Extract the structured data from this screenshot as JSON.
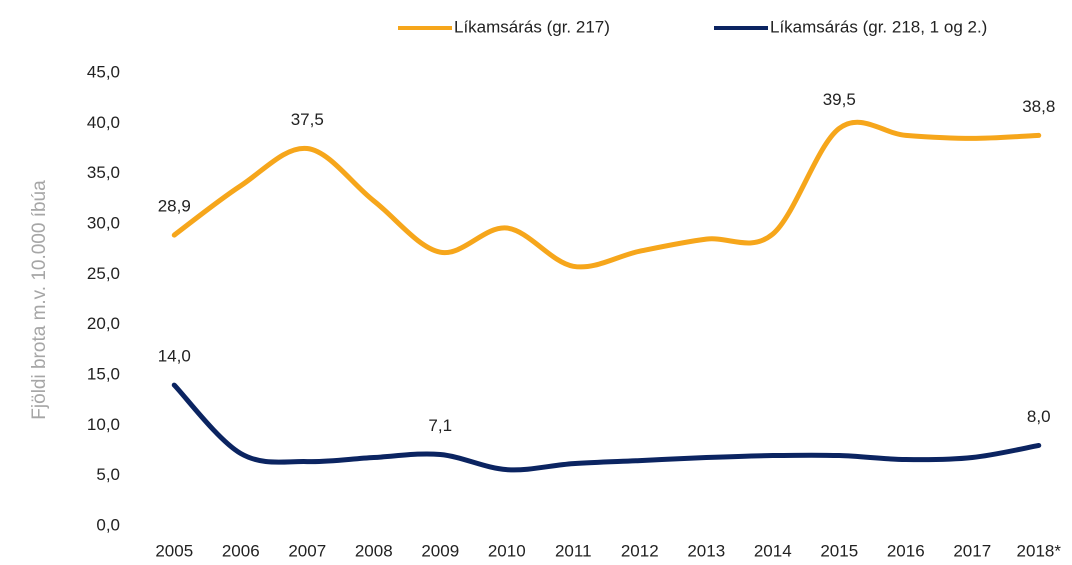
{
  "chart_data": {
    "type": "line",
    "categories": [
      "2005",
      "2006",
      "2007",
      "2008",
      "2009",
      "2010",
      "2011",
      "2012",
      "2013",
      "2014",
      "2015",
      "2016",
      "2017",
      "2018*"
    ],
    "series": [
      {
        "name": "Líkamsárás (gr. 217)",
        "color": "#f6a61b",
        "values": [
          28.9,
          33.8,
          37.5,
          32.3,
          27.2,
          29.6,
          25.8,
          27.3,
          28.5,
          29.0,
          39.5,
          38.8,
          38.5,
          38.8
        ],
        "value_labels": [
          "28,9",
          null,
          "37,5",
          null,
          null,
          null,
          null,
          null,
          null,
          null,
          "39,5",
          null,
          null,
          "38,8"
        ]
      },
      {
        "name": "Líkamsárás (gr. 218, 1 og 2.)",
        "color": "#0b2461",
        "values": [
          14.0,
          7.2,
          6.4,
          6.8,
          7.1,
          5.6,
          6.2,
          6.5,
          6.8,
          7.0,
          7.0,
          6.6,
          6.8,
          8.0
        ],
        "value_labels": [
          "14,0",
          null,
          null,
          null,
          "7,1",
          null,
          null,
          null,
          null,
          null,
          null,
          null,
          null,
          "8,0"
        ]
      }
    ],
    "y_label": "Fjöldi brota m.v. 10.000 íbúa",
    "ylim": [
      0,
      45
    ],
    "yticks": [
      {
        "value": 0,
        "label": "0,0"
      },
      {
        "value": 5,
        "label": "5,0"
      },
      {
        "value": 10,
        "label": "10,0"
      },
      {
        "value": 15,
        "label": "15,0"
      },
      {
        "value": 20,
        "label": "20,0"
      },
      {
        "value": 25,
        "label": "25,0"
      },
      {
        "value": 30,
        "label": "30,0"
      },
      {
        "value": 35,
        "label": "35,0"
      },
      {
        "value": 40,
        "label": "40,0"
      },
      {
        "value": 45,
        "label": "45,0"
      }
    ],
    "grid": false,
    "legend": "top"
  }
}
